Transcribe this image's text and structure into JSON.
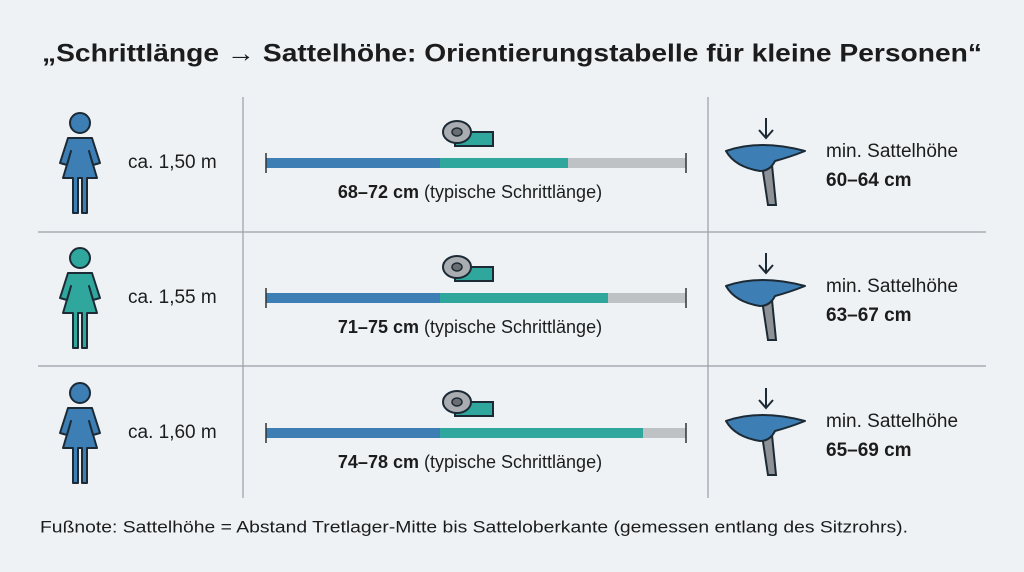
{
  "title": "„Schrittlänge → Sattelhöhe: Orientierungstabelle für kleine Personen“",
  "rows": [
    {
      "height": "ca. 1,50 m",
      "crotch_range": "68–72 cm",
      "crotch_note": "(typische Schrittlänge)",
      "saddle_label": "min. Sattelhöhe",
      "saddle_range": "60–64 cm"
    },
    {
      "height": "ca. 1,55 m",
      "crotch_range": "71–75 cm",
      "crotch_note": "(typische Schrittlänge)",
      "saddle_label": "min. Sattelhöhe",
      "saddle_range": "63–67 cm"
    },
    {
      "height": "ca. 1,60 m",
      "crotch_range": "74–78 cm",
      "crotch_note": "(typische Schrittlänge)",
      "saddle_label": "min. Sattelhöhe",
      "saddle_range": "65–69 cm"
    }
  ],
  "footnote": "Fußnote: Sattelhöhe = Abstand Tretlager-Mitte bis Satteloberkante (gemessen entlang des Sitzrohrs)."
}
